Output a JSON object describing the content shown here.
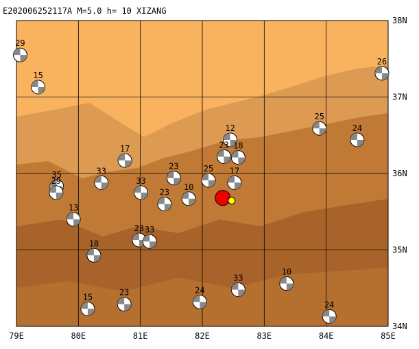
{
  "map": {
    "title": "E202006252117A  M=5.0  h= 10 XIZANG",
    "xlim": [
      79,
      85
    ],
    "ylim": [
      34,
      38
    ],
    "xticks": [
      {
        "value": 79,
        "label": "79E"
      },
      {
        "value": 80,
        "label": "80E"
      },
      {
        "value": 81,
        "label": "81E"
      },
      {
        "value": 82,
        "label": "82E"
      },
      {
        "value": 83,
        "label": "83E"
      },
      {
        "value": 84,
        "label": "84E"
      },
      {
        "value": 85,
        "label": "85E"
      }
    ],
    "yticks": [
      {
        "value": 34,
        "label": "34N"
      },
      {
        "value": 35,
        "label": "35N"
      },
      {
        "value": 36,
        "label": "36N"
      },
      {
        "value": 37,
        "label": "37N"
      },
      {
        "value": 38,
        "label": "38N"
      }
    ],
    "epicenter": {
      "lon": 82.33,
      "lat": 35.68
    },
    "events": [
      {
        "lon": 79.06,
        "lat": 37.55,
        "label": "29"
      },
      {
        "lon": 79.35,
        "lat": 37.13,
        "label": "15"
      },
      {
        "lon": 84.9,
        "lat": 37.31,
        "label": "26"
      },
      {
        "lon": 83.89,
        "lat": 36.59,
        "label": "25"
      },
      {
        "lon": 84.5,
        "lat": 36.44,
        "label": "24"
      },
      {
        "lon": 82.45,
        "lat": 36.44,
        "label": "12"
      },
      {
        "lon": 82.35,
        "lat": 36.22,
        "label": "23"
      },
      {
        "lon": 82.58,
        "lat": 36.21,
        "label": "18"
      },
      {
        "lon": 80.75,
        "lat": 36.17,
        "label": "17"
      },
      {
        "lon": 82.1,
        "lat": 35.91,
        "label": "25"
      },
      {
        "lon": 80.37,
        "lat": 35.88,
        "label": "33"
      },
      {
        "lon": 79.65,
        "lat": 35.83,
        "label": "35"
      },
      {
        "lon": 79.64,
        "lat": 35.75,
        "label": "29"
      },
      {
        "lon": 81.01,
        "lat": 35.75,
        "label": "33"
      },
      {
        "lon": 81.54,
        "lat": 35.94,
        "label": "23"
      },
      {
        "lon": 81.78,
        "lat": 35.67,
        "label": "10"
      },
      {
        "lon": 79.92,
        "lat": 35.4,
        "label": "13"
      },
      {
        "lon": 80.25,
        "lat": 34.93,
        "label": "18"
      },
      {
        "lon": 81.39,
        "lat": 35.6,
        "label": "23"
      },
      {
        "lon": 80.98,
        "lat": 35.13,
        "label": "23"
      },
      {
        "lon": 81.15,
        "lat": 35.11,
        "label": "33"
      },
      {
        "lon": 81.96,
        "lat": 34.32,
        "label": "24"
      },
      {
        "lon": 82.58,
        "lat": 34.48,
        "label": "33"
      },
      {
        "lon": 83.36,
        "lat": 34.56,
        "label": "10"
      },
      {
        "lon": 80.15,
        "lat": 34.23,
        "label": "15"
      },
      {
        "lon": 80.74,
        "lat": 34.29,
        "label": "23"
      },
      {
        "lon": 84.05,
        "lat": 34.13,
        "label": "24"
      },
      {
        "lon": 82.52,
        "lat": 35.88,
        "label": "17"
      }
    ]
  }
}
